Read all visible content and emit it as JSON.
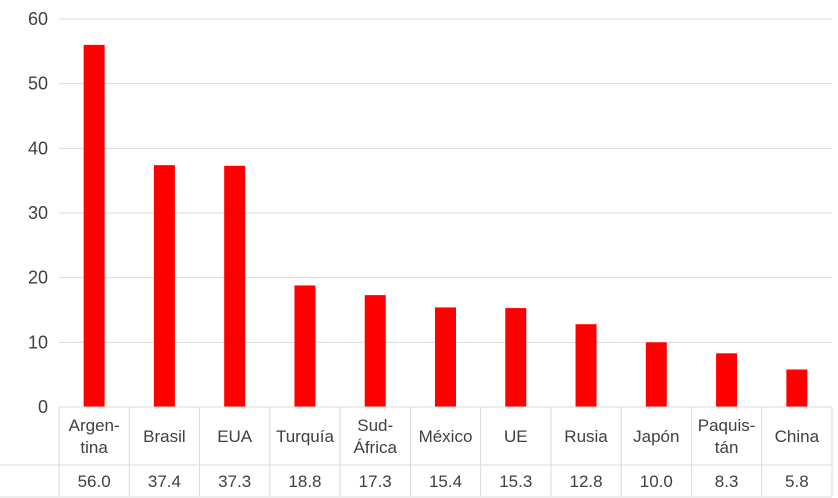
{
  "chart_data": {
    "type": "bar",
    "categories": [
      [
        "Argen-",
        "tina"
      ],
      [
        "Brasil"
      ],
      [
        "EUA"
      ],
      [
        "Turquía"
      ],
      [
        "Sud-",
        "África"
      ],
      [
        "México"
      ],
      [
        "UE"
      ],
      [
        "Rusia"
      ],
      [
        "Japón"
      ],
      [
        "Paquis-",
        "tán"
      ],
      [
        "China"
      ]
    ],
    "values": [
      56.0,
      37.4,
      37.3,
      18.8,
      17.3,
      15.4,
      15.3,
      12.8,
      10.0,
      8.3,
      5.8
    ],
    "value_labels": [
      "56.0",
      "37.4",
      "37.3",
      "18.8",
      "17.3",
      "15.4",
      "15.3",
      "12.8",
      "10.0",
      "8.3",
      "5.8"
    ],
    "title": "",
    "xlabel": "",
    "ylabel": "",
    "ylim": [
      0,
      60
    ],
    "yticks": [
      "0",
      "10",
      "20",
      "30",
      "40",
      "50",
      "60"
    ],
    "grid": true,
    "legend": "none",
    "bar_color": "#ff0000",
    "grid_color": "#d9d9d9",
    "text_color": "#404040"
  }
}
